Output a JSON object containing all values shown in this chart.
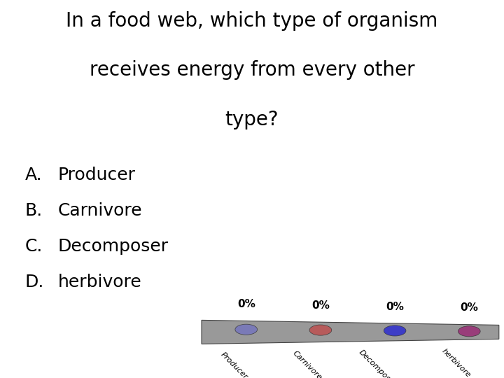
{
  "title_line1": "In a food web, which type of organism",
  "title_line2": "receives energy from every other",
  "title_line3": "type?",
  "options": [
    [
      "A.",
      "Producer"
    ],
    [
      "B.",
      "Carnivore"
    ],
    [
      "C.",
      "Decomposer"
    ],
    [
      "D.",
      "herbivore"
    ]
  ],
  "title_fontsize": 20,
  "option_fontsize": 18,
  "bar_labels": [
    "Producer",
    "Carnivore",
    "Decomposer",
    "herbivore"
  ],
  "bar_percentages": [
    "0%",
    "0%",
    "0%",
    "0%"
  ],
  "dot_colors": [
    "#7777bb",
    "#bb5555",
    "#3333cc",
    "#993377"
  ],
  "background_color": "#ffffff",
  "bar_color": "#999999"
}
